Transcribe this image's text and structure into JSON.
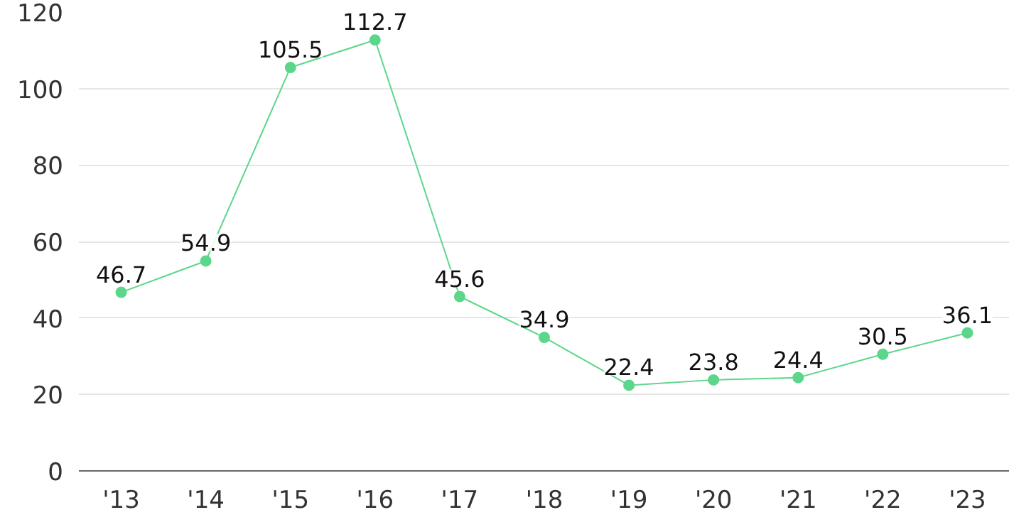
{
  "chart_data": {
    "type": "line",
    "categories": [
      "'13",
      "'14",
      "'15",
      "'16",
      "'17",
      "'18",
      "'19",
      "'20",
      "'21",
      "'22",
      "'23"
    ],
    "series": [
      {
        "color": "#5cd68a",
        "values": [
          46.7,
          54.9,
          105.5,
          112.7,
          45.6,
          34.9,
          22.4,
          23.8,
          24.4,
          30.5,
          36.1
        ]
      }
    ],
    "ylim": [
      0,
      120
    ],
    "yticks": [
      0,
      20,
      40,
      60,
      80,
      100,
      120
    ],
    "grid": "y",
    "marker": "circle",
    "line_style": "solid",
    "data_labels": true
  }
}
